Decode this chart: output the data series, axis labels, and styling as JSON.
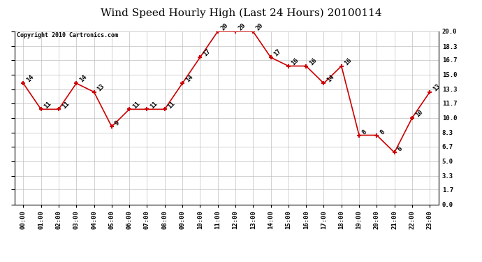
{
  "title": "Wind Speed Hourly High (Last 24 Hours) 20100114",
  "copyright": "Copyright 2010 Cartronics.com",
  "hours": [
    "00:00",
    "01:00",
    "02:00",
    "03:00",
    "04:00",
    "05:00",
    "06:00",
    "07:00",
    "08:00",
    "09:00",
    "10:00",
    "11:00",
    "12:00",
    "13:00",
    "14:00",
    "15:00",
    "16:00",
    "17:00",
    "18:00",
    "19:00",
    "20:00",
    "21:00",
    "22:00",
    "23:00"
  ],
  "values": [
    14,
    11,
    11,
    14,
    13,
    9,
    11,
    11,
    11,
    14,
    17,
    20,
    20,
    20,
    17,
    16,
    16,
    14,
    16,
    8,
    8,
    6,
    10,
    13
  ],
  "ylim": [
    0,
    20.0
  ],
  "yticks": [
    0.0,
    1.7,
    3.3,
    5.0,
    6.7,
    8.3,
    10.0,
    11.7,
    13.3,
    15.0,
    16.7,
    18.3,
    20.0
  ],
  "ytick_labels": [
    "0.0",
    "1.7",
    "3.3",
    "5.0",
    "6.7",
    "8.3",
    "10.0",
    "11.7",
    "13.3",
    "15.0",
    "16.7",
    "18.3",
    "20.0"
  ],
  "line_color": "#cc0000",
  "bg_color": "#ffffff",
  "grid_color": "#c0c0c0",
  "title_fontsize": 11,
  "label_fontsize": 6.5,
  "annotation_fontsize": 6.5,
  "copyright_fontsize": 6
}
